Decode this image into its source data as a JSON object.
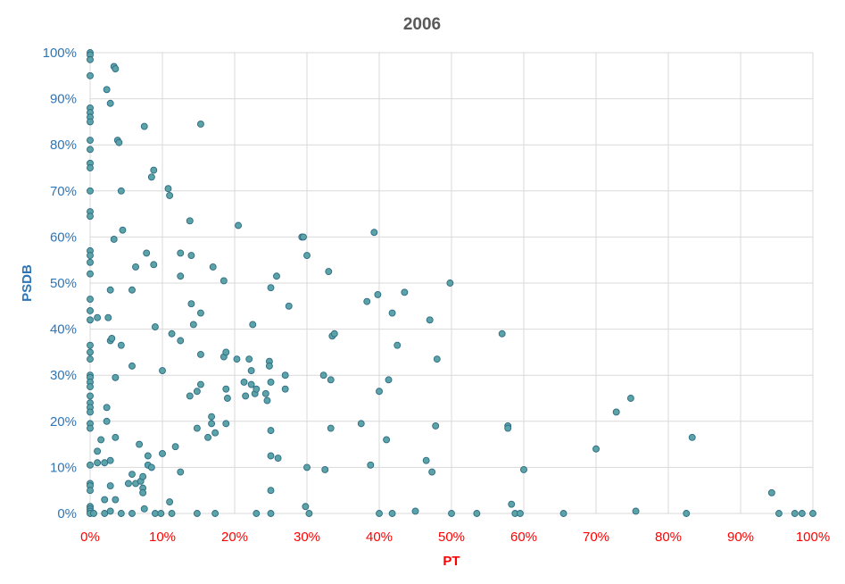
{
  "chart_data": {
    "type": "scatter",
    "title": "2006",
    "xlabel": "PT",
    "ylabel": "PSDB",
    "xlim": [
      0,
      1
    ],
    "ylim": [
      0,
      1
    ],
    "x_ticks": [
      "0%",
      "10%",
      "20%",
      "30%",
      "40%",
      "50%",
      "60%",
      "70%",
      "80%",
      "90%",
      "100%"
    ],
    "y_ticks": [
      "0%",
      "10%",
      "20%",
      "30%",
      "40%",
      "50%",
      "60%",
      "70%",
      "80%",
      "90%",
      "100%"
    ],
    "grid": true,
    "colors": {
      "marker_fill": "#5BA3A6",
      "marker_stroke": "#2E6B85",
      "grid": "#D9D9D9",
      "y_text": "#2E75B6",
      "x_text": "#FF0000",
      "title": "#595959"
    },
    "points": [
      [
        0.0,
        1.0
      ],
      [
        0.0,
        0.995
      ],
      [
        0.0,
        0.985
      ],
      [
        0.0,
        0.95
      ],
      [
        0.0,
        0.88
      ],
      [
        0.0,
        0.87
      ],
      [
        0.0,
        0.86
      ],
      [
        0.0,
        0.85
      ],
      [
        0.0,
        0.81
      ],
      [
        0.0,
        0.79
      ],
      [
        0.0,
        0.76
      ],
      [
        0.0,
        0.75
      ],
      [
        0.0,
        0.7
      ],
      [
        0.0,
        0.655
      ],
      [
        0.0,
        0.645
      ],
      [
        0.0,
        0.57
      ],
      [
        0.0,
        0.56
      ],
      [
        0.0,
        0.545
      ],
      [
        0.0,
        0.52
      ],
      [
        0.0,
        0.465
      ],
      [
        0.0,
        0.44
      ],
      [
        0.0,
        0.42
      ],
      [
        0.0,
        0.365
      ],
      [
        0.0,
        0.35
      ],
      [
        0.0,
        0.335
      ],
      [
        0.0,
        0.3
      ],
      [
        0.0,
        0.295
      ],
      [
        0.0,
        0.285
      ],
      [
        0.0,
        0.275
      ],
      [
        0.0,
        0.255
      ],
      [
        0.0,
        0.24
      ],
      [
        0.0,
        0.23
      ],
      [
        0.0,
        0.22
      ],
      [
        0.0,
        0.195
      ],
      [
        0.0,
        0.185
      ],
      [
        0.0,
        0.105
      ],
      [
        0.0,
        0.065
      ],
      [
        0.0,
        0.06
      ],
      [
        0.0,
        0.05
      ],
      [
        0.0,
        0.015
      ],
      [
        0.0,
        0.01
      ],
      [
        0.0,
        0.005
      ],
      [
        0.0,
        0.0
      ],
      [
        0.005,
        0.0
      ],
      [
        0.01,
        0.425
      ],
      [
        0.01,
        0.11
      ],
      [
        0.01,
        0.135
      ],
      [
        0.015,
        0.16
      ],
      [
        0.02,
        0.11
      ],
      [
        0.02,
        0.0
      ],
      [
        0.02,
        0.03
      ],
      [
        0.023,
        0.92
      ],
      [
        0.023,
        0.23
      ],
      [
        0.023,
        0.2
      ],
      [
        0.025,
        0.425
      ],
      [
        0.028,
        0.89
      ],
      [
        0.028,
        0.485
      ],
      [
        0.028,
        0.375
      ],
      [
        0.028,
        0.115
      ],
      [
        0.028,
        0.06
      ],
      [
        0.028,
        0.005
      ],
      [
        0.03,
        0.38
      ],
      [
        0.033,
        0.97
      ],
      [
        0.033,
        0.595
      ],
      [
        0.035,
        0.965
      ],
      [
        0.035,
        0.295
      ],
      [
        0.035,
        0.165
      ],
      [
        0.035,
        0.03
      ],
      [
        0.038,
        0.81
      ],
      [
        0.04,
        0.805
      ],
      [
        0.043,
        0.7
      ],
      [
        0.043,
        0.365
      ],
      [
        0.045,
        0.615
      ],
      [
        0.043,
        0.0
      ],
      [
        0.053,
        0.065
      ],
      [
        0.058,
        0.485
      ],
      [
        0.058,
        0.32
      ],
      [
        0.058,
        0.085
      ],
      [
        0.058,
        0.0
      ],
      [
        0.063,
        0.535
      ],
      [
        0.063,
        0.065
      ],
      [
        0.068,
        0.15
      ],
      [
        0.07,
        0.07
      ],
      [
        0.073,
        0.08
      ],
      [
        0.073,
        0.055
      ],
      [
        0.073,
        0.045
      ],
      [
        0.075,
        0.84
      ],
      [
        0.075,
        0.01
      ],
      [
        0.078,
        0.565
      ],
      [
        0.08,
        0.125
      ],
      [
        0.08,
        0.105
      ],
      [
        0.085,
        0.73
      ],
      [
        0.085,
        0.1
      ],
      [
        0.088,
        0.745
      ],
      [
        0.088,
        0.54
      ],
      [
        0.09,
        0.405
      ],
      [
        0.09,
        0.0
      ],
      [
        0.1,
        0.31
      ],
      [
        0.1,
        0.13
      ],
      [
        0.098,
        0.0
      ],
      [
        0.108,
        0.705
      ],
      [
        0.11,
        0.69
      ],
      [
        0.11,
        0.025
      ],
      [
        0.118,
        0.145
      ],
      [
        0.113,
        0.39
      ],
      [
        0.113,
        0.0
      ],
      [
        0.125,
        0.565
      ],
      [
        0.125,
        0.515
      ],
      [
        0.125,
        0.375
      ],
      [
        0.125,
        0.09
      ],
      [
        0.138,
        0.635
      ],
      [
        0.138,
        0.255
      ],
      [
        0.14,
        0.56
      ],
      [
        0.14,
        0.455
      ],
      [
        0.143,
        0.41
      ],
      [
        0.148,
        0.265
      ],
      [
        0.148,
        0.185
      ],
      [
        0.153,
        0.845
      ],
      [
        0.153,
        0.435
      ],
      [
        0.153,
        0.345
      ],
      [
        0.153,
        0.28
      ],
      [
        0.148,
        0.0
      ],
      [
        0.163,
        0.165
      ],
      [
        0.17,
        0.535
      ],
      [
        0.168,
        0.21
      ],
      [
        0.168,
        0.195
      ],
      [
        0.173,
        0.175
      ],
      [
        0.173,
        0.0
      ],
      [
        0.185,
        0.505
      ],
      [
        0.185,
        0.34
      ],
      [
        0.188,
        0.35
      ],
      [
        0.188,
        0.27
      ],
      [
        0.188,
        0.195
      ],
      [
        0.19,
        0.25
      ],
      [
        0.203,
        0.335
      ],
      [
        0.205,
        0.625
      ],
      [
        0.213,
        0.285
      ],
      [
        0.215,
        0.255
      ],
      [
        0.22,
        0.335
      ],
      [
        0.223,
        0.31
      ],
      [
        0.223,
        0.28
      ],
      [
        0.225,
        0.41
      ],
      [
        0.228,
        0.26
      ],
      [
        0.23,
        0.27
      ],
      [
        0.23,
        0.0
      ],
      [
        0.243,
        0.26
      ],
      [
        0.245,
        0.245
      ],
      [
        0.248,
        0.33
      ],
      [
        0.248,
        0.32
      ],
      [
        0.25,
        0.49
      ],
      [
        0.25,
        0.285
      ],
      [
        0.25,
        0.18
      ],
      [
        0.25,
        0.125
      ],
      [
        0.25,
        0.05
      ],
      [
        0.25,
        0.0
      ],
      [
        0.258,
        0.515
      ],
      [
        0.26,
        0.12
      ],
      [
        0.27,
        0.3
      ],
      [
        0.27,
        0.27
      ],
      [
        0.275,
        0.45
      ],
      [
        0.293,
        0.6
      ],
      [
        0.295,
        0.6
      ],
      [
        0.3,
        0.56
      ],
      [
        0.3,
        0.1
      ],
      [
        0.298,
        0.015
      ],
      [
        0.303,
        0.0
      ],
      [
        0.323,
        0.3
      ],
      [
        0.325,
        0.095
      ],
      [
        0.33,
        0.525
      ],
      [
        0.333,
        0.185
      ],
      [
        0.333,
        0.29
      ],
      [
        0.335,
        0.385
      ],
      [
        0.338,
        0.39
      ],
      [
        0.375,
        0.195
      ],
      [
        0.383,
        0.46
      ],
      [
        0.388,
        0.105
      ],
      [
        0.393,
        0.61
      ],
      [
        0.398,
        0.475
      ],
      [
        0.4,
        0.265
      ],
      [
        0.4,
        0.0
      ],
      [
        0.41,
        0.16
      ],
      [
        0.413,
        0.29
      ],
      [
        0.418,
        0.435
      ],
      [
        0.418,
        0.0
      ],
      [
        0.425,
        0.365
      ],
      [
        0.435,
        0.48
      ],
      [
        0.45,
        0.005
      ],
      [
        0.465,
        0.115
      ],
      [
        0.47,
        0.42
      ],
      [
        0.473,
        0.09
      ],
      [
        0.478,
        0.19
      ],
      [
        0.48,
        0.335
      ],
      [
        0.498,
        0.5
      ],
      [
        0.5,
        0.0
      ],
      [
        0.535,
        0.0
      ],
      [
        0.57,
        0.39
      ],
      [
        0.578,
        0.19
      ],
      [
        0.578,
        0.185
      ],
      [
        0.583,
        0.02
      ],
      [
        0.588,
        0.0
      ],
      [
        0.595,
        0.0
      ],
      [
        0.6,
        0.095
      ],
      [
        0.655,
        0.0
      ],
      [
        0.7,
        0.14
      ],
      [
        0.728,
        0.22
      ],
      [
        0.748,
        0.25
      ],
      [
        0.755,
        0.005
      ],
      [
        0.825,
        0.0
      ],
      [
        0.833,
        0.165
      ],
      [
        0.943,
        0.045
      ],
      [
        0.953,
        0.0
      ],
      [
        0.975,
        0.0
      ],
      [
        0.985,
        0.0
      ],
      [
        1.0,
        0.0
      ]
    ]
  }
}
